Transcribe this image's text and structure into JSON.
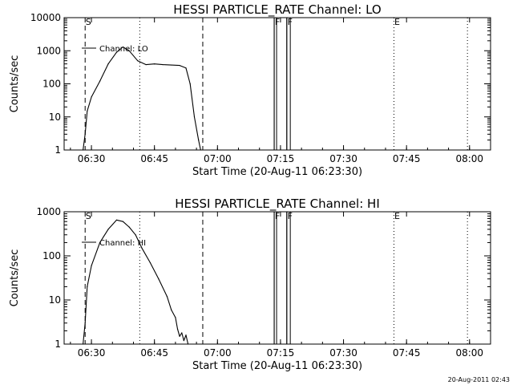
{
  "footer": {
    "timestamp": "20-Aug-2011 02:43"
  },
  "chart_data": [
    {
      "type": "line",
      "title": "HESSI PARTICLE_RATE Channel: LO",
      "xlabel": "Start Time (20-Aug-11 06:23:30)",
      "ylabel": "Counts/sec",
      "y_scale": "log",
      "xlim": [
        "06:23:30",
        "08:05:00"
      ],
      "ylim": [
        1,
        10000
      ],
      "x_ticks": [
        "06:30",
        "06:45",
        "07:00",
        "07:15",
        "07:30",
        "07:45",
        "08:00"
      ],
      "y_ticks": [
        "1",
        "10",
        "100",
        "1000",
        "10000"
      ],
      "markers": [
        {
          "label": "S",
          "time": "06:28:30",
          "style": "dashed"
        },
        {
          "label": "",
          "time": "06:56:30",
          "style": "dashed"
        },
        {
          "label": "",
          "time": "06:41:30",
          "style": "dotted"
        },
        {
          "label": "",
          "time": "07:42:00",
          "style": "dotted"
        },
        {
          "label": "",
          "time": "07:59:30",
          "style": "dotted"
        },
        {
          "label": "F",
          "time": "07:13:30",
          "style": "solid"
        },
        {
          "label": "F",
          "time": "07:16:30",
          "style": "solid"
        },
        {
          "label": "E",
          "time": "07:42:00",
          "style": "none"
        }
      ],
      "boxes": [
        {
          "start": "07:13:30",
          "end": "07:14:00"
        },
        {
          "start": "07:16:30",
          "end": "07:17:20"
        }
      ],
      "series": [
        {
          "name": "Channel: LO",
          "x": [
            "06:28:00",
            "06:28:30",
            "06:29:00",
            "06:30:00",
            "06:32:00",
            "06:34:00",
            "06:36:00",
            "06:37:30",
            "06:39:00",
            "06:41:00",
            "06:43:00",
            "06:45:00",
            "06:47:00",
            "06:49:00",
            "06:51:00",
            "06:52:30",
            "06:53:30",
            "06:54:30",
            "06:55:30",
            "06:56:00"
          ],
          "y": [
            1,
            3,
            15,
            40,
            120,
            400,
            900,
            1300,
            1000,
            500,
            380,
            400,
            380,
            370,
            360,
            300,
            100,
            10,
            2,
            1
          ]
        }
      ]
    },
    {
      "type": "line",
      "title": "HESSI PARTICLE_RATE Channel: HI",
      "xlabel": "Start Time (20-Aug-11 06:23:30)",
      "ylabel": "Counts/sec",
      "y_scale": "log",
      "xlim": [
        "06:23:30",
        "08:05:00"
      ],
      "ylim": [
        1,
        1000
      ],
      "x_ticks": [
        "06:30",
        "06:45",
        "07:00",
        "07:15",
        "07:30",
        "07:45",
        "08:00"
      ],
      "y_ticks": [
        "1",
        "10",
        "100",
        "1000"
      ],
      "markers": [
        {
          "label": "S",
          "time": "06:28:30",
          "style": "dashed"
        },
        {
          "label": "",
          "time": "06:56:30",
          "style": "dashed"
        },
        {
          "label": "",
          "time": "06:41:30",
          "style": "dotted"
        },
        {
          "label": "",
          "time": "07:42:00",
          "style": "dotted"
        },
        {
          "label": "",
          "time": "07:59:30",
          "style": "dotted"
        },
        {
          "label": "F",
          "time": "07:13:30",
          "style": "solid"
        },
        {
          "label": "F",
          "time": "07:16:30",
          "style": "solid"
        },
        {
          "label": "E",
          "time": "07:42:00",
          "style": "none"
        }
      ],
      "boxes": [
        {
          "start": "07:13:30",
          "end": "07:14:00"
        },
        {
          "start": "07:16:30",
          "end": "07:17:20"
        }
      ],
      "series": [
        {
          "name": "Channel: HI",
          "x": [
            "06:28:00",
            "06:28:30",
            "06:29:00",
            "06:30:00",
            "06:32:00",
            "06:34:00",
            "06:36:00",
            "06:37:30",
            "06:39:00",
            "06:40:30",
            "06:42:00",
            "06:44:00",
            "06:46:00",
            "06:48:00",
            "06:49:00",
            "06:50:00",
            "06:50:30",
            "06:51:00",
            "06:51:30",
            "06:52:00",
            "06:52:30",
            "06:53:00"
          ],
          "y": [
            1,
            3,
            20,
            60,
            200,
            400,
            650,
            600,
            450,
            300,
            150,
            70,
            30,
            12,
            6,
            4,
            2.2,
            1.5,
            1.8,
            1.2,
            1.6,
            1
          ]
        }
      ]
    }
  ]
}
